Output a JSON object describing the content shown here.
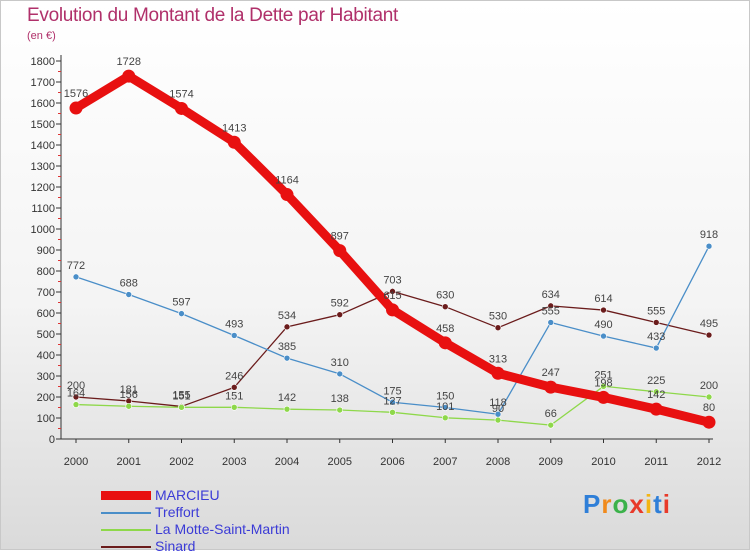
{
  "header": {
    "title": "Evolution du Montant de la Dette par Habitant",
    "subtitle": "(en €)"
  },
  "chart_data": {
    "type": "line",
    "x": [
      "2000",
      "2001",
      "2002",
      "2003",
      "2004",
      "2005",
      "2006",
      "2007",
      "2008",
      "2009",
      "2010",
      "2011",
      "2012"
    ],
    "y_ticks": [
      0,
      100,
      200,
      300,
      400,
      500,
      600,
      700,
      800,
      900,
      1000,
      1100,
      1200,
      1300,
      1400,
      1500,
      1600,
      1700,
      1800
    ],
    "ylim": [
      0,
      1800
    ],
    "grid": false,
    "legend_position": "bottom-left",
    "series": [
      {
        "name": "MARCIEU",
        "color": "#e81010",
        "values": [
          1576,
          1728,
          1574,
          1413,
          1164,
          897,
          615,
          458,
          313,
          247,
          198,
          142,
          80
        ]
      },
      {
        "name": "Treffort",
        "color": "#4a8ec8",
        "values": [
          772,
          688,
          597,
          493,
          385,
          310,
          175,
          150,
          118,
          555,
          490,
          433,
          918
        ]
      },
      {
        "name": "La Motte-Saint-Martin",
        "color": "#8ed84a",
        "values": [
          164,
          156,
          151,
          151,
          142,
          138,
          127,
          101,
          90,
          66,
          251,
          225,
          200
        ]
      },
      {
        "name": "Sinard",
        "color": "#6b1c1c",
        "values": [
          200,
          181,
          155,
          246,
          534,
          592,
          703,
          630,
          530,
          634,
          614,
          555,
          495
        ]
      }
    ]
  },
  "legend": {
    "label_color": "#3b3bd6",
    "items": [
      "MARCIEU",
      "Treffort",
      "La Motte-Saint-Martin",
      "Sinard"
    ]
  },
  "logo": {
    "text": "Proxiti",
    "letter_colors": [
      "#2f7fd8",
      "#f08a1c",
      "#3bb24a",
      "#e83a2a",
      "#f3b514",
      "#2f7fd8",
      "#e83a2a"
    ]
  }
}
